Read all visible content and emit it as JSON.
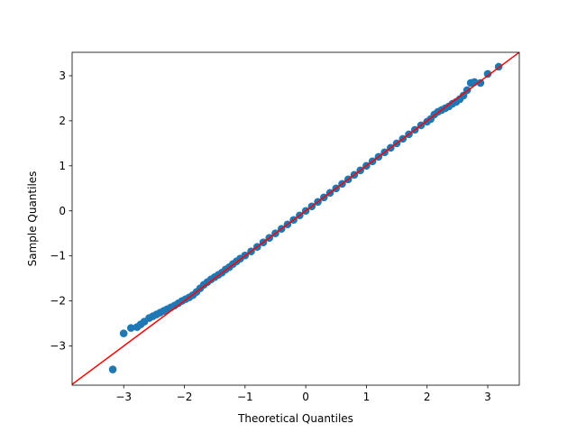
{
  "chart_data": {
    "type": "scatter",
    "title": "",
    "xlabel": "Theoretical Quantiles",
    "ylabel": "Sample Quantiles",
    "xlim": [
      -3.85,
      3.52
    ],
    "ylim": [
      -3.87,
      3.52
    ],
    "xticks": [
      -3,
      -2,
      -1,
      0,
      1,
      2,
      3
    ],
    "yticks": [
      -3,
      -2,
      -1,
      0,
      1,
      2,
      3
    ],
    "grid": false,
    "point_color": "#1f77b4",
    "line_color": "#ff0000",
    "reference_line": {
      "slope": 1,
      "intercept": 0
    },
    "points": {
      "x": [
        -3.18,
        -3.0,
        -2.88,
        -2.78,
        -2.72,
        -2.66,
        -2.58,
        -2.52,
        -2.46,
        -2.4,
        -2.34,
        -2.28,
        -2.22,
        -2.16,
        -2.1,
        -2.04,
        -1.98,
        -1.92,
        -1.86,
        -1.8,
        -1.74,
        -1.68,
        -1.62,
        -1.56,
        -1.5,
        -1.44,
        -1.38,
        -1.32,
        -1.26,
        -1.2,
        -1.14,
        -1.08,
        -1.0,
        -0.9,
        -0.8,
        -0.7,
        -0.6,
        -0.5,
        -0.4,
        -0.3,
        -0.2,
        -0.1,
        0.0,
        0.1,
        0.2,
        0.3,
        0.4,
        0.5,
        0.6,
        0.7,
        0.8,
        0.9,
        1.0,
        1.1,
        1.2,
        1.3,
        1.4,
        1.5,
        1.6,
        1.7,
        1.8,
        1.9,
        2.0,
        2.06,
        2.12,
        2.18,
        2.24,
        2.3,
        2.36,
        2.42,
        2.48,
        2.54,
        2.6,
        2.66,
        2.72,
        2.78,
        2.88,
        3.0,
        3.18
      ],
      "y": [
        -3.52,
        -2.72,
        -2.6,
        -2.58,
        -2.52,
        -2.46,
        -2.38,
        -2.34,
        -2.3,
        -2.26,
        -2.22,
        -2.18,
        -2.14,
        -2.1,
        -2.05,
        -2.0,
        -1.96,
        -1.92,
        -1.87,
        -1.8,
        -1.72,
        -1.64,
        -1.58,
        -1.52,
        -1.47,
        -1.42,
        -1.37,
        -1.3,
        -1.25,
        -1.18,
        -1.12,
        -1.06,
        -0.99,
        -0.9,
        -0.8,
        -0.7,
        -0.6,
        -0.5,
        -0.4,
        -0.3,
        -0.2,
        -0.1,
        0.0,
        0.1,
        0.2,
        0.3,
        0.4,
        0.5,
        0.6,
        0.7,
        0.8,
        0.9,
        1.0,
        1.1,
        1.2,
        1.3,
        1.4,
        1.5,
        1.6,
        1.7,
        1.8,
        1.9,
        1.98,
        2.04,
        2.14,
        2.2,
        2.24,
        2.28,
        2.32,
        2.38,
        2.42,
        2.48,
        2.56,
        2.68,
        2.84,
        2.86,
        2.84,
        3.04,
        3.2
      ]
    }
  }
}
